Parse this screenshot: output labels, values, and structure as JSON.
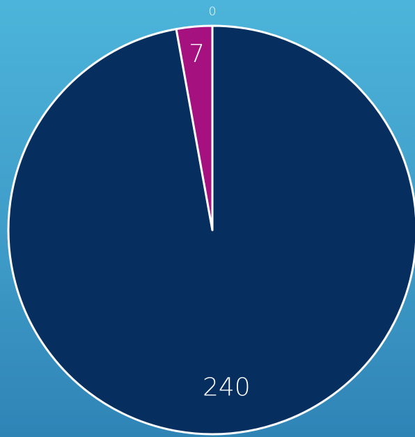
{
  "chart_data": {
    "type": "pie",
    "values": [
      240,
      7,
      0
    ],
    "colors": [
      "#062f5f",
      "#a5117f",
      null
    ]
  }
}
